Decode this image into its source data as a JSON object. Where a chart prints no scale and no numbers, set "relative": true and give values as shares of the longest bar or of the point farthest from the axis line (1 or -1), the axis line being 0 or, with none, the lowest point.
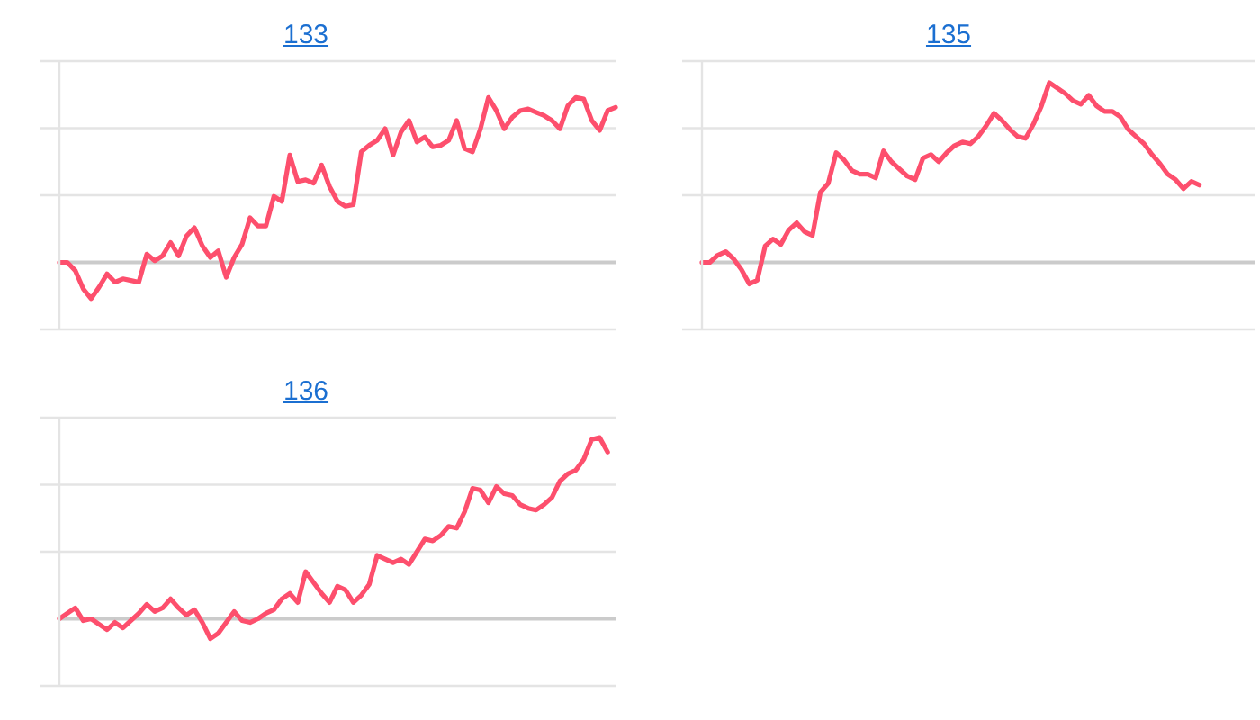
{
  "chart_data": [
    {
      "type": "line",
      "title": "133",
      "relative": true,
      "color": "#fd4f6d",
      "categories": [
        null,
        null,
        null,
        null,
        null,
        null,
        null,
        null,
        null,
        null,
        null,
        null,
        null,
        null,
        null,
        null,
        null,
        null,
        null,
        null,
        null,
        null,
        null,
        null,
        null,
        null,
        null,
        null,
        null,
        null,
        null,
        null,
        null,
        null,
        null,
        null,
        null,
        null,
        null,
        null,
        null,
        null,
        null,
        null,
        null,
        null,
        null,
        null,
        null,
        null,
        null,
        null,
        null,
        null,
        null,
        null,
        null,
        null,
        null,
        null,
        null,
        null,
        null,
        null,
        null,
        null,
        null,
        null,
        null,
        null,
        null
      ],
      "values": [
        0,
        0,
        -0.05,
        -0.16,
        -0.22,
        -0.15,
        -0.07,
        -0.12,
        -0.1,
        -0.11,
        -0.12,
        0.05,
        0.01,
        0.04,
        0.12,
        0.04,
        0.16,
        0.21,
        0.1,
        0.03,
        0.07,
        -0.09,
        0.03,
        0.11,
        0.27,
        0.22,
        0.22,
        0.4,
        0.37,
        0.65,
        0.49,
        0.5,
        0.48,
        0.59,
        0.46,
        0.37,
        0.34,
        0.35,
        0.67,
        0.71,
        0.74,
        0.81,
        0.65,
        0.79,
        0.86,
        0.73,
        0.76,
        0.7,
        0.71,
        0.74,
        0.86,
        0.69,
        0.67,
        0.81,
        1.0,
        0.92,
        0.81,
        0.88,
        0.92,
        0.93,
        0.91,
        0.89,
        0.86,
        0.81,
        0.95,
        1.0,
        0.99,
        0.86,
        0.8,
        0.92,
        0.94
      ]
    },
    {
      "type": "line",
      "title": "135",
      "relative": true,
      "color": "#fd4f6d",
      "categories": [
        null,
        null,
        null,
        null,
        null,
        null,
        null,
        null,
        null,
        null,
        null,
        null,
        null,
        null,
        null,
        null,
        null,
        null,
        null,
        null,
        null,
        null,
        null,
        null,
        null,
        null,
        null,
        null,
        null,
        null,
        null,
        null,
        null,
        null,
        null,
        null,
        null,
        null,
        null,
        null,
        null,
        null,
        null,
        null,
        null,
        null,
        null,
        null,
        null,
        null,
        null,
        null,
        null,
        null,
        null,
        null,
        null,
        null,
        null,
        null,
        null,
        null,
        null,
        null,
        null,
        null,
        null,
        null,
        null,
        null,
        null
      ],
      "values": [
        0,
        0,
        0.04,
        0.06,
        0.02,
        -0.04,
        -0.12,
        -0.1,
        0.09,
        0.13,
        0.1,
        0.18,
        0.22,
        0.17,
        0.15,
        0.39,
        0.44,
        0.61,
        0.57,
        0.51,
        0.49,
        0.49,
        0.47,
        0.62,
        0.56,
        0.52,
        0.48,
        0.46,
        0.58,
        0.6,
        0.56,
        0.61,
        0.65,
        0.67,
        0.66,
        0.7,
        0.76,
        0.83,
        0.79,
        0.74,
        0.7,
        0.69,
        0.77,
        0.87,
        1.0,
        0.97,
        0.94,
        0.9,
        0.88,
        0.93,
        0.87,
        0.84,
        0.84,
        0.81,
        0.74,
        0.7,
        0.66,
        0.6,
        0.55,
        0.49,
        0.46,
        0.41,
        0.45,
        0.43,
        null,
        null,
        null,
        null,
        null,
        null,
        null
      ]
    },
    {
      "type": "line",
      "title": "136",
      "relative": true,
      "color": "#fd4f6d",
      "categories": [
        null,
        null,
        null,
        null,
        null,
        null,
        null,
        null,
        null,
        null,
        null,
        null,
        null,
        null,
        null,
        null,
        null,
        null,
        null,
        null,
        null,
        null,
        null,
        null,
        null,
        null,
        null,
        null,
        null,
        null,
        null,
        null,
        null,
        null,
        null,
        null,
        null,
        null,
        null,
        null,
        null,
        null,
        null,
        null,
        null,
        null,
        null,
        null,
        null,
        null,
        null,
        null,
        null,
        null,
        null,
        null,
        null,
        null,
        null,
        null,
        null,
        null,
        null,
        null,
        null,
        null,
        null,
        null,
        null,
        null,
        null
      ],
      "values": [
        0,
        0.03,
        0.06,
        -0.01,
        0,
        -0.03,
        -0.06,
        -0.02,
        -0.05,
        -0.01,
        0.03,
        0.08,
        0.04,
        0.06,
        0.11,
        0.06,
        0.02,
        0.05,
        -0.02,
        -0.11,
        -0.08,
        -0.02,
        0.04,
        -0.01,
        -0.02,
        0,
        0.03,
        0.05,
        0.11,
        0.14,
        0.09,
        0.26,
        0.2,
        0.14,
        0.09,
        0.18,
        0.16,
        0.09,
        0.13,
        0.19,
        0.35,
        0.33,
        0.31,
        0.33,
        0.3,
        0.37,
        0.44,
        0.43,
        0.46,
        0.51,
        0.5,
        0.59,
        0.72,
        0.71,
        0.64,
        0.73,
        0.69,
        0.68,
        0.63,
        0.61,
        0.6,
        0.63,
        0.67,
        0.76,
        0.8,
        0.82,
        0.88,
        0.99,
        1.0,
        0.92,
        null
      ]
    }
  ]
}
